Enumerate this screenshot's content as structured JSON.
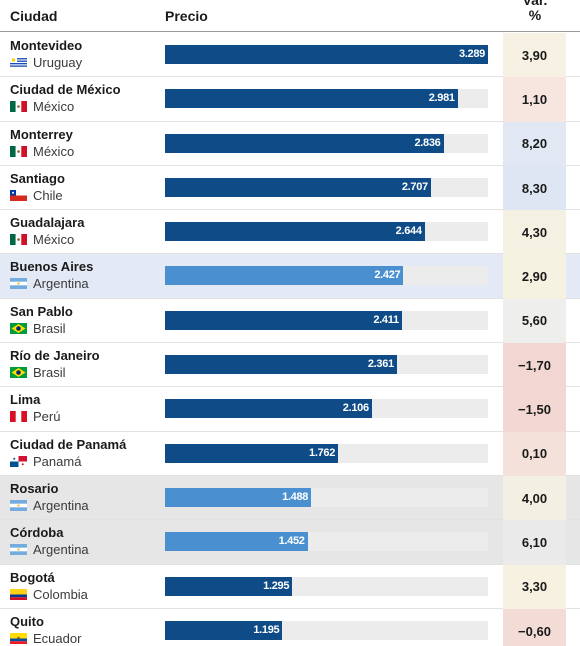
{
  "header": {
    "city": "Ciudad",
    "price": "Precio",
    "var_line1": "Var.",
    "var_line2": "%"
  },
  "colors": {
    "bar_dark": "#0f4c87",
    "bar_light": "#4a90d1",
    "track": "#ececec",
    "highlight_blue": "#e3eaf6",
    "highlight_gray": "#e6e6e6"
  },
  "chart_data": {
    "type": "bar",
    "orientation": "horizontal",
    "xlim": [
      0,
      3289
    ],
    "rows": [
      {
        "city": "Montevideo",
        "country": "Uruguay",
        "flag": "uruguay-flag",
        "price": 3289,
        "price_label": "3.289",
        "var": "3,90",
        "var_color": "#f6f1e2",
        "bar_style": "dark",
        "row_highlight": ""
      },
      {
        "city": "Ciudad de México",
        "country": "México",
        "flag": "mexico-flag",
        "price": 2981,
        "price_label": "2.981",
        "var": "1,10",
        "var_color": "#f6e6df",
        "bar_style": "dark",
        "row_highlight": ""
      },
      {
        "city": "Monterrey",
        "country": "México",
        "flag": "mexico-flag",
        "price": 2836,
        "price_label": "2.836",
        "var": "8,20",
        "var_color": "#e1e8f4",
        "bar_style": "dark",
        "row_highlight": ""
      },
      {
        "city": "Santiago",
        "country": "Chile",
        "flag": "chile-flag",
        "price": 2707,
        "price_label": "2.707",
        "var": "8,30",
        "var_color": "#dfe6f3",
        "bar_style": "dark",
        "row_highlight": ""
      },
      {
        "city": "Guadalajara",
        "country": "México",
        "flag": "mexico-flag",
        "price": 2644,
        "price_label": "2.644",
        "var": "4,30",
        "var_color": "#f4f1e3",
        "bar_style": "dark",
        "row_highlight": ""
      },
      {
        "city": "Buenos Aires",
        "country": "Argentina",
        "flag": "argentina-flag",
        "price": 2427,
        "price_label": "2.427",
        "var": "2,90",
        "var_color": "#f6f2e1",
        "bar_style": "light",
        "row_highlight": "blue"
      },
      {
        "city": "San Pablo",
        "country": "Brasil",
        "flag": "brazil-flag",
        "price": 2411,
        "price_label": "2.411",
        "var": "5,60",
        "var_color": "#eeeeec",
        "bar_style": "dark",
        "row_highlight": ""
      },
      {
        "city": "Río de Janeiro",
        "country": "Brasil",
        "flag": "brazil-flag",
        "price": 2361,
        "price_label": "2.361",
        "var": "−1,70",
        "var_color": "#f1d6d2",
        "bar_style": "dark",
        "row_highlight": ""
      },
      {
        "city": "Lima",
        "country": "Perú",
        "flag": "peru-flag",
        "price": 2106,
        "price_label": "2.106",
        "var": "−1,50",
        "var_color": "#f2d7d2",
        "bar_style": "dark",
        "row_highlight": ""
      },
      {
        "city": "Ciudad de Panamá",
        "country": "Panamá",
        "flag": "panama-flag",
        "price": 1762,
        "price_label": "1.762",
        "var": "0,10",
        "var_color": "#f4e2da",
        "bar_style": "dark",
        "row_highlight": ""
      },
      {
        "city": "Rosario",
        "country": "Argentina",
        "flag": "argentina-flag",
        "price": 1488,
        "price_label": "1.488",
        "var": "4,00",
        "var_color": "#f3f0e3",
        "bar_style": "light",
        "row_highlight": "gray"
      },
      {
        "city": "Córdoba",
        "country": "Argentina",
        "flag": "argentina-flag",
        "price": 1452,
        "price_label": "1.452",
        "var": "6,10",
        "var_color": "#eaeaea",
        "bar_style": "light",
        "row_highlight": "gray"
      },
      {
        "city": "Bogotá",
        "country": "Colombia",
        "flag": "colombia-flag",
        "price": 1295,
        "price_label": "1.295",
        "var": "3,30",
        "var_color": "#f6f1e1",
        "bar_style": "dark",
        "row_highlight": ""
      },
      {
        "city": "Quito",
        "country": "Ecuador",
        "flag": "ecuador-flag",
        "price": 1195,
        "price_label": "1.195",
        "var": "−0,60",
        "var_color": "#f3dcd6",
        "bar_style": "dark",
        "row_highlight": ""
      }
    ]
  }
}
